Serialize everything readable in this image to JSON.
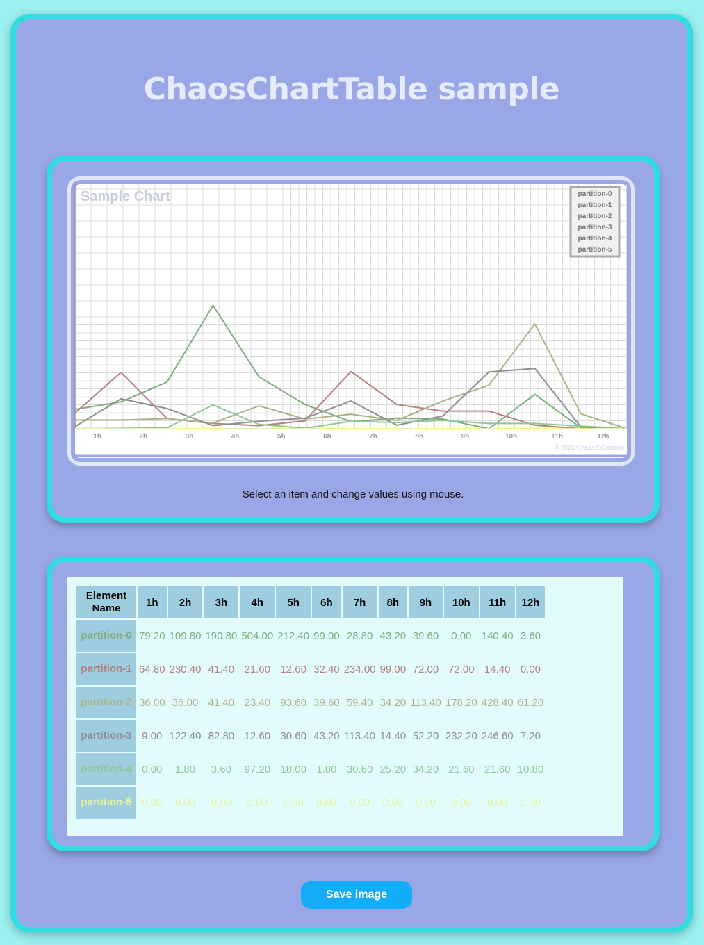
{
  "page": {
    "title": "ChaosChartTable sample",
    "hint": "Select an item and change values using mouse.",
    "save_label": "Save image"
  },
  "chart_data": {
    "type": "line",
    "title": "Sample Chart",
    "copyright": "© 2025 ChaosToCosmos",
    "categories": [
      "1h",
      "2h",
      "3h",
      "4h",
      "5h",
      "6h",
      "7h",
      "8h",
      "9h",
      "10h",
      "11h",
      "12h"
    ],
    "ylim": [
      0,
      1000
    ],
    "legend_position": "top-right",
    "grid": true,
    "series": [
      {
        "name": "partition-0",
        "color": "#7dae7d",
        "values": [
          79.2,
          109.8,
          190.8,
          504.0,
          212.4,
          99.0,
          28.8,
          43.2,
          39.6,
          0.0,
          140.4,
          3.6
        ]
      },
      {
        "name": "partition-1",
        "color": "#b58080",
        "values": [
          64.8,
          230.4,
          41.4,
          21.6,
          12.6,
          32.4,
          234.0,
          99.0,
          72.0,
          72.0,
          14.4,
          0.0
        ]
      },
      {
        "name": "partition-2",
        "color": "#b0b088",
        "values": [
          36.0,
          36.0,
          41.4,
          23.4,
          93.6,
          39.6,
          59.4,
          34.2,
          113.4,
          178.2,
          428.4,
          61.2
        ]
      },
      {
        "name": "partition-3",
        "color": "#8e8e95",
        "values": [
          9.0,
          122.4,
          82.8,
          12.6,
          30.6,
          43.2,
          113.4,
          14.4,
          52.2,
          232.2,
          246.6,
          7.2
        ]
      },
      {
        "name": "partition-4",
        "color": "#8dc89d",
        "values": [
          0.0,
          1.8,
          3.6,
          97.2,
          18.0,
          1.8,
          30.6,
          25.2,
          34.2,
          21.6,
          21.6,
          10.8
        ]
      },
      {
        "name": "partition-5",
        "color": "#e6f29a",
        "values": [
          0.0,
          0.0,
          0.0,
          0.0,
          0.0,
          0.0,
          0.0,
          0.0,
          0.0,
          0.0,
          0.0,
          0.0
        ]
      }
    ]
  },
  "table": {
    "header": "Element Name",
    "columns": [
      "1h",
      "2h",
      "3h",
      "4h",
      "5h",
      "6h",
      "7h",
      "8h",
      "9h",
      "10h",
      "11h",
      "12h"
    ],
    "rows": [
      {
        "name": "partition-0",
        "color": "#7dae7d",
        "values": [
          "79.20",
          "109.80",
          "190.80",
          "504.00",
          "212.40",
          "99.00",
          "28.80",
          "43.20",
          "39.60",
          "0.00",
          "140.40",
          "3.60"
        ]
      },
      {
        "name": "partition-1",
        "color": "#b58080",
        "values": [
          "64.80",
          "230.40",
          "41.40",
          "21.60",
          "12.60",
          "32.40",
          "234.00",
          "99.00",
          "72.00",
          "72.00",
          "14.40",
          "0.00"
        ]
      },
      {
        "name": "partition-2",
        "color": "#b0b088",
        "values": [
          "36.00",
          "36.00",
          "41.40",
          "23.40",
          "93.60",
          "39.60",
          "59.40",
          "34.20",
          "113.40",
          "178.20",
          "428.40",
          "61.20"
        ]
      },
      {
        "name": "partition-3",
        "color": "#8e8e95",
        "values": [
          "9.00",
          "122.40",
          "82.80",
          "12.60",
          "30.60",
          "43.20",
          "113.40",
          "14.40",
          "52.20",
          "232.20",
          "246.60",
          "7.20"
        ]
      },
      {
        "name": "partition-4",
        "color": "#8dc89d",
        "values": [
          "0.00",
          "1.80",
          "3.60",
          "97.20",
          "18.00",
          "1.80",
          "30.60",
          "25.20",
          "34.20",
          "21.60",
          "21.60",
          "10.80"
        ]
      },
      {
        "name": "partition-5",
        "color": "#e6f29a",
        "values": [
          "0.00",
          "0.00",
          "0.00",
          "0.00",
          "0.00",
          "0.00",
          "0.00",
          "0.00",
          "0.00",
          "0.00",
          "0.00",
          "0.00"
        ]
      }
    ]
  }
}
